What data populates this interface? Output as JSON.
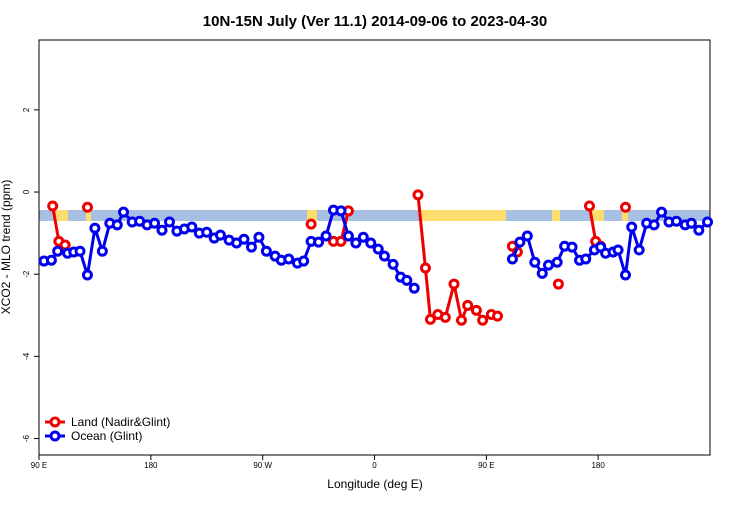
{
  "chart_data": {
    "type": "line",
    "title": "10N-15N July (Ver 11.1)   2014-09-06 to 2023-04-30",
    "x_label": "Longitude (deg E)",
    "y_label": "XCO2 - MLO trend (ppm)",
    "xlim": [
      90,
      630
    ],
    "xticks": [
      {
        "value": 90,
        "label": "90 E"
      },
      180,
      {
        "value": 270,
        "label": "90 W"
      },
      {
        "value": 360,
        "label": "0"
      },
      {
        "value": 450,
        "label": "90 E"
      },
      {
        "value": 540,
        "label": "180"
      }
    ],
    "ylim": [
      -6.4,
      3.7
    ],
    "yticks": [
      -6,
      -4,
      -2,
      0,
      2
    ],
    "legend": "bottom-left",
    "series": [
      {
        "name": "Land (Nadir&Glint)",
        "color": "#ee0000",
        "x": [
          101,
          106,
          111,
          120,
          129,
          200,
          309,
          320,
          327,
          333,
          339,
          350,
          395,
          401,
          405,
          411,
          417,
          424,
          430,
          435,
          442,
          447,
          454,
          459,
          465,
          471,
          475,
          490,
          508,
          520,
          533,
          538,
          542,
          555,
          562
        ],
        "values": [
          -0.34,
          -1.2,
          -1.29,
          null,
          -0.37,
          null,
          -0.78,
          null,
          -1.2,
          -1.2,
          -0.46,
          null,
          -0.07,
          -1.85,
          -3.1,
          -2.98,
          -3.05,
          -2.24,
          -3.12,
          -2.76,
          -2.88,
          -3.12,
          -2.98,
          -3.02,
          null,
          -1.32,
          -1.46,
          null,
          -2.24,
          null,
          -0.34,
          -1.2,
          -1.32,
          null,
          -0.37
        ]
      },
      {
        "name": "Ocean (Glint)",
        "color": "#0000ee",
        "x": [
          94,
          100,
          105,
          113,
          118,
          123,
          129,
          135,
          141,
          147,
          153,
          158,
          165,
          171,
          177,
          183,
          189,
          195,
          201,
          207,
          213,
          219,
          225,
          231,
          236,
          243,
          249,
          255,
          261,
          267,
          273,
          280,
          285,
          291,
          298,
          303,
          309,
          315,
          321,
          327,
          333,
          339,
          345,
          351,
          357,
          363,
          368,
          375,
          381,
          386,
          392,
          453,
          471,
          477,
          483,
          489,
          495,
          500,
          507,
          513,
          519,
          525,
          530,
          537,
          542,
          546,
          552,
          556,
          562,
          567,
          573,
          579,
          585,
          591,
          597,
          603,
          610,
          615,
          621,
          628
        ],
        "values": [
          -1.68,
          -1.66,
          -1.44,
          -1.49,
          -1.46,
          -1.44,
          -2.02,
          -0.88,
          -1.44,
          -0.76,
          -0.8,
          -0.49,
          -0.73,
          -0.71,
          -0.8,
          -0.76,
          -0.93,
          -0.73,
          -0.95,
          -0.9,
          -0.85,
          -1.0,
          -0.98,
          -1.12,
          -1.05,
          -1.17,
          -1.24,
          -1.15,
          -1.34,
          -1.1,
          -1.44,
          -1.56,
          -1.66,
          -1.63,
          -1.73,
          -1.68,
          -1.2,
          -1.22,
          -1.07,
          -0.44,
          -0.46,
          -1.07,
          -1.24,
          -1.1,
          -1.24,
          -1.39,
          -1.56,
          -1.76,
          -2.07,
          -2.15,
          -2.34,
          null,
          -1.63,
          -1.22,
          -1.07,
          -1.71,
          -1.98,
          -1.78,
          -1.71,
          -1.32,
          -1.34,
          -1.66,
          -1.63,
          -1.41,
          -1.34,
          -1.49,
          -1.46,
          -1.41,
          -2.02,
          -0.85,
          -1.41,
          -0.76,
          -0.8,
          -0.49,
          -0.73,
          -0.71,
          -0.8,
          -0.76,
          -0.93,
          -0.73
        ]
      }
    ]
  }
}
